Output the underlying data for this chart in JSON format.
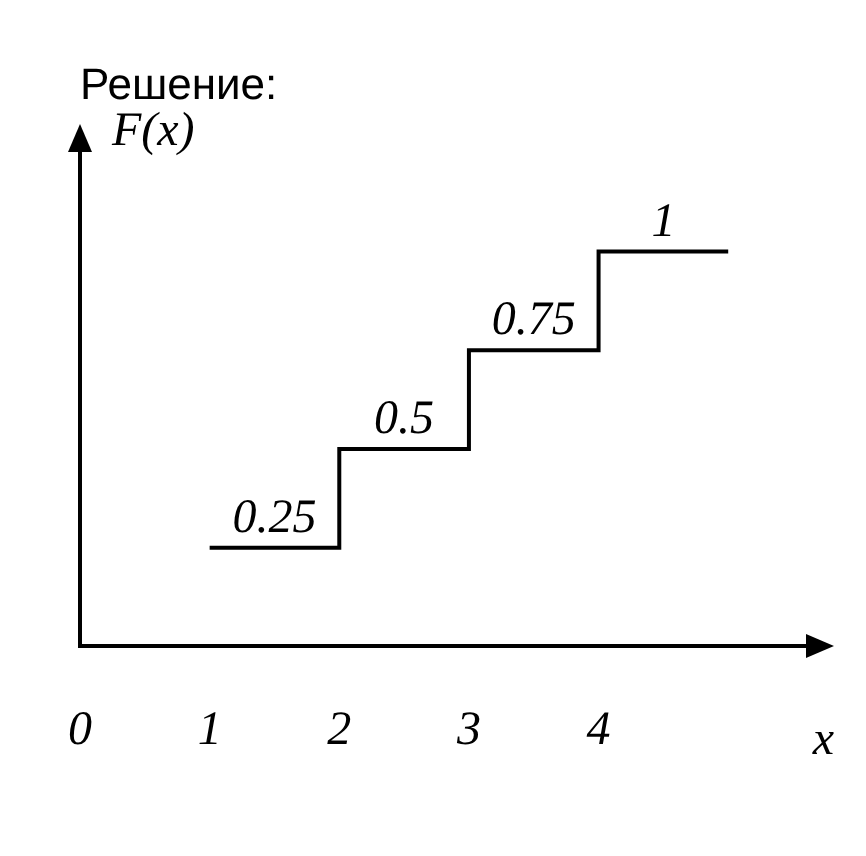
{
  "chart_data": {
    "type": "step",
    "title": "Решение:",
    "xlabel": "x",
    "ylabel": "F(x)",
    "x": [
      1,
      2,
      3,
      4,
      5
    ],
    "series": [
      {
        "color": "#000000",
        "values": [
          0.25,
          0.5,
          0.75,
          1,
          1
        ],
        "value_labels": [
          "0.25",
          "0.5",
          "0.75",
          "1",
          null
        ]
      }
    ],
    "xlim": [
      0,
      5.6
    ],
    "xticks": [
      0,
      1,
      2,
      3,
      4
    ],
    "ylim": [
      0,
      1.25
    ],
    "tick_labels": "x",
    "grid": false,
    "legend": false,
    "marker": "none"
  }
}
